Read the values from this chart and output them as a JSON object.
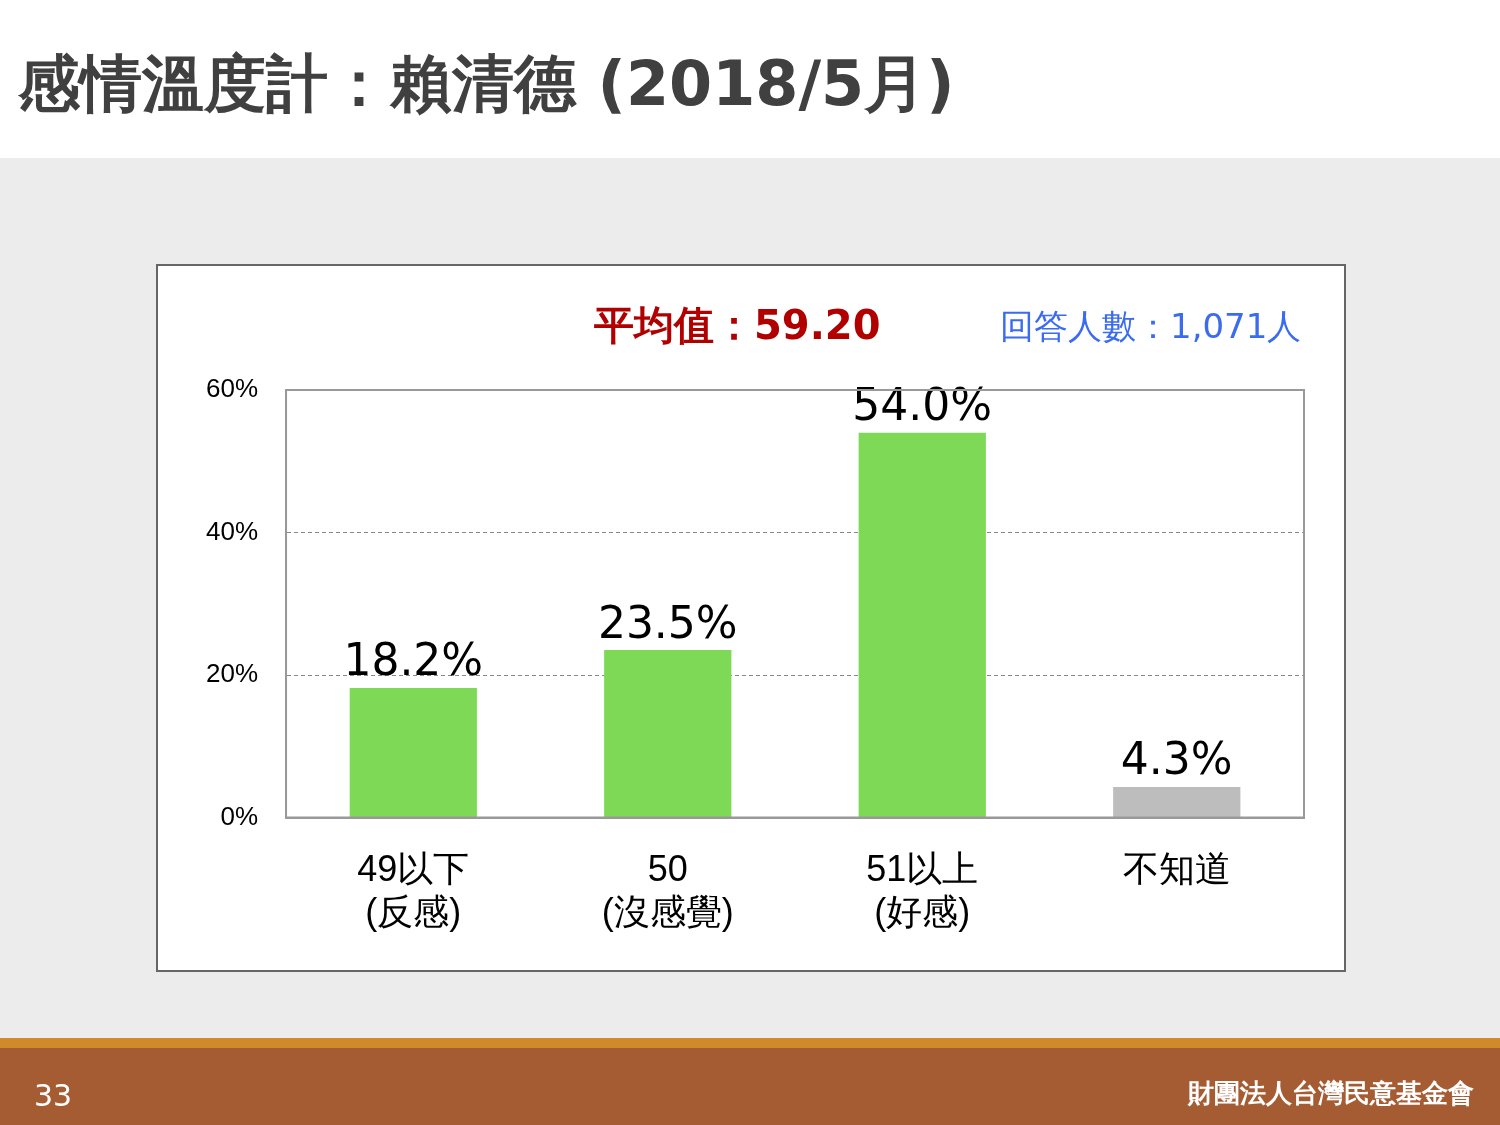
{
  "chart_data": {
    "type": "bar",
    "title": "感情溫度計：賴清德 (2018/5月)",
    "categories": [
      "49以下\n(反感)",
      "50\n(沒感覺)",
      "51以上\n(好感)",
      "不知道"
    ],
    "values": [
      18.2,
      23.5,
      54.0,
      4.3
    ],
    "value_labels": [
      "18.2%",
      "23.5%",
      "54.0%",
      "4.3%"
    ],
    "colors": [
      "#7ed957",
      "#7ed957",
      "#7ed957",
      "#bdbdbd"
    ],
    "ylim": [
      0,
      60
    ],
    "yticks": [
      {
        "value": 0,
        "label": "0%"
      },
      {
        "value": 20,
        "label": "20%"
      },
      {
        "value": 40,
        "label": "40%"
      },
      {
        "value": 60,
        "label": "60%"
      }
    ],
    "grid": "y",
    "legend": false,
    "annotations": [
      "平均值：59.20",
      "回答人數：1,071人",
      "33",
      "財團法人台灣民意基金會"
    ]
  }
}
